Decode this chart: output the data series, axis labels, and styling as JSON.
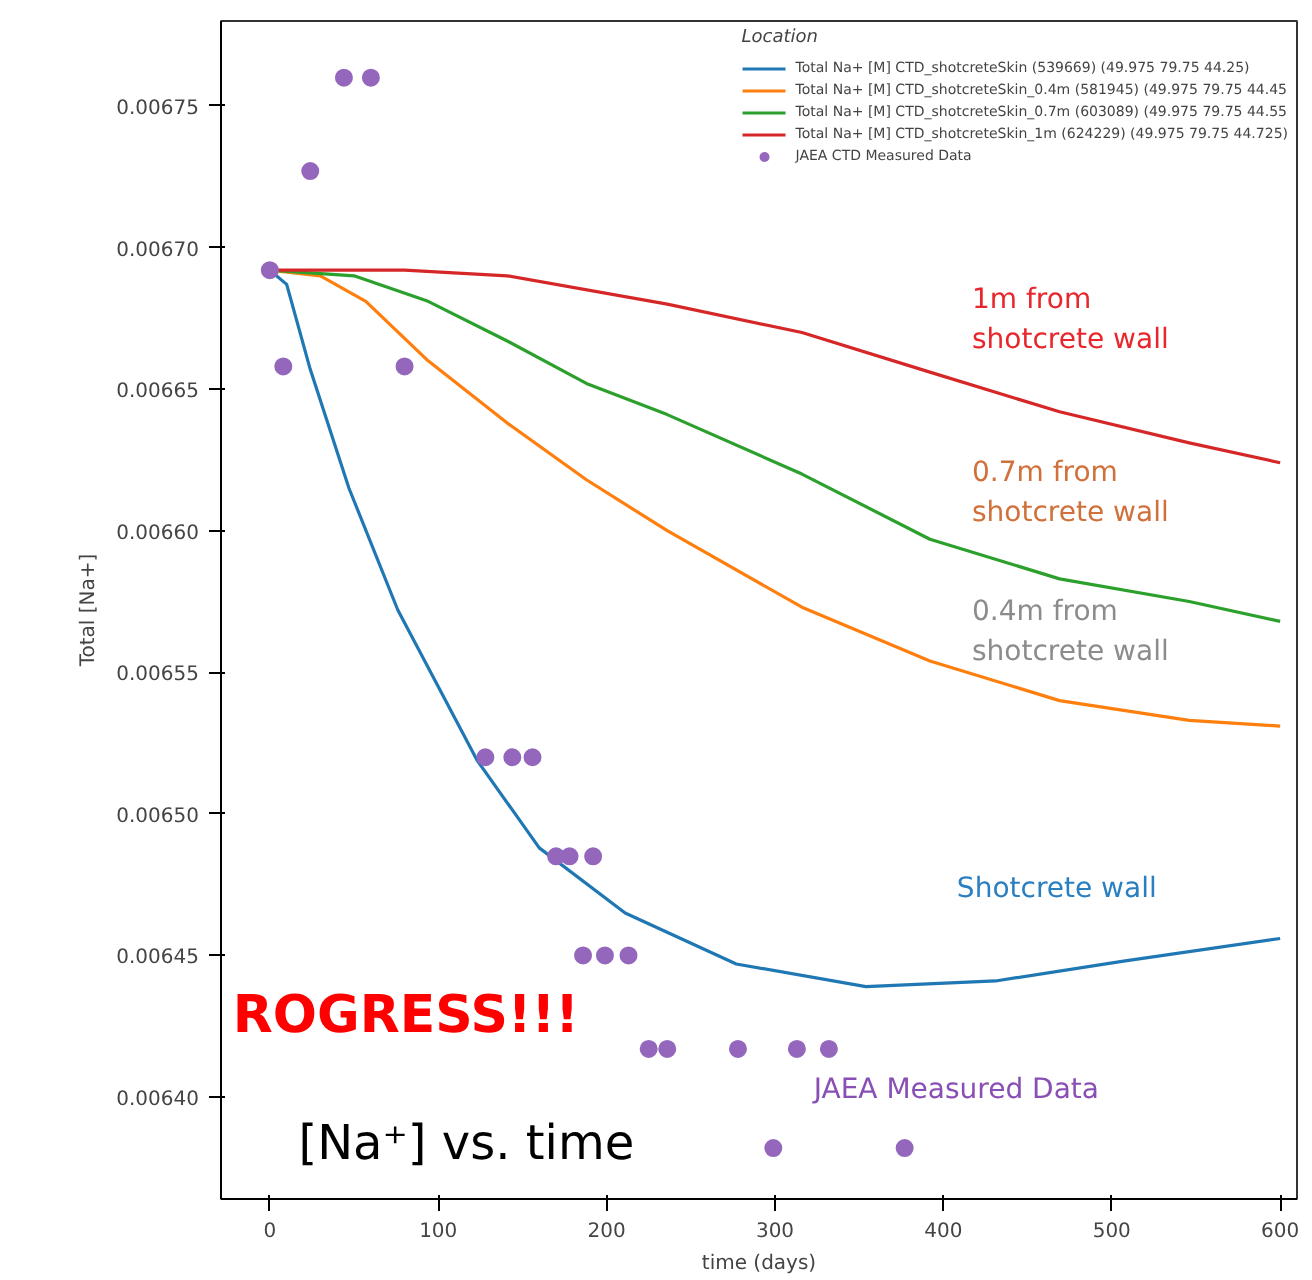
{
  "chart_data": {
    "type": "line",
    "xlabel": "time (days)",
    "ylabel": "Total [Na+]",
    "legend_title": "Location",
    "legend": "top right",
    "grid": false,
    "xlim": [
      -29,
      610
    ],
    "ylim": [
      0.006364,
      0.00678
    ],
    "xticks": [
      0,
      100,
      200,
      300,
      400,
      500,
      600
    ],
    "yticks": [
      {
        "value": 0.0064,
        "label": "0.00640"
      },
      {
        "value": 0.00645,
        "label": "0.00645"
      },
      {
        "value": 0.0065,
        "label": "0.00650"
      },
      {
        "value": 0.00655,
        "label": "0.00655"
      },
      {
        "value": 0.0066,
        "label": "0.00660"
      },
      {
        "value": 0.00665,
        "label": "0.00665"
      },
      {
        "value": 0.0067,
        "label": "0.00670"
      },
      {
        "value": 0.00675,
        "label": "0.00675"
      }
    ],
    "series": [
      {
        "name": "Total Na+ [M] CTD_shotcreteSkin (539669) (49.975 79.75 44.25)",
        "color": "#1f77b4",
        "x": [
          0,
          10,
          24,
          47,
          76,
          123,
          160,
          211,
          277,
          354,
          431,
          507,
          600
        ],
        "values": [
          0.006692,
          0.006687,
          0.006657,
          0.006615,
          0.006572,
          0.006519,
          0.006488,
          0.006465,
          0.006447,
          0.006439,
          0.006441,
          0.006448,
          0.006456
        ]
      },
      {
        "name": "Total Na+ [M] CTD_shotcreteSkin_0.4m (581945) (49.975 79.75 44.45",
        "color": "#ff7f0e",
        "x": [
          0,
          30,
          57,
          94,
          141,
          188,
          236,
          316,
          392,
          469,
          546,
          600
        ],
        "values": [
          0.006692,
          0.00669,
          0.006681,
          0.00666,
          0.006638,
          0.006618,
          0.0066,
          0.006573,
          0.006554,
          0.00654,
          0.006533,
          0.006531
        ]
      },
      {
        "name": "Total Na+ [M] CTD_shotcreteSkin_0.7m (603089) (49.975 79.75 44.55",
        "color": "#2ca02c",
        "x": [
          0,
          50,
          94,
          141,
          188,
          236,
          316,
          392,
          469,
          546,
          600
        ],
        "values": [
          0.006692,
          0.00669,
          0.006681,
          0.006667,
          0.006652,
          0.006641,
          0.00662,
          0.006597,
          0.006583,
          0.006575,
          0.006568
        ]
      },
      {
        "name": "Total Na+ [M] CTD_shotcreteSkin_1m (624229) (49.975 79.75 44.725)",
        "color": "#d62728",
        "x": [
          0,
          80,
          141,
          236,
          316,
          392,
          469,
          546,
          600
        ],
        "values": [
          0.006692,
          0.006692,
          0.00669,
          0.00668,
          0.00667,
          0.006656,
          0.006642,
          0.006631,
          0.006624
        ]
      },
      {
        "name": "JAEA CTD Measured Data",
        "type": "scatter",
        "marker": "circle",
        "color": "#9467bd",
        "x": [
          0,
          8,
          24,
          44,
          60,
          80,
          128,
          144,
          156,
          170,
          178,
          192,
          186,
          199,
          213,
          225,
          236,
          278,
          313,
          332,
          299,
          377
        ],
        "values": [
          0.006692,
          0.006658,
          0.006727,
          0.00676,
          0.00676,
          0.006658,
          0.00652,
          0.00652,
          0.00652,
          0.006485,
          0.006485,
          0.006485,
          0.00645,
          0.00645,
          0.00645,
          0.006417,
          0.006417,
          0.006417,
          0.006417,
          0.006417,
          0.006382,
          0.006382
        ]
      }
    ],
    "annotations": [
      "1m from\nshotcrete wall",
      "0.7m from\nshotcrete wall",
      "0.4m from\nshotcrete wall",
      "Shotcrete wall",
      "JAEA Measured Data",
      "[Na⁺] vs. time",
      "ROGRESS!!!"
    ]
  }
}
